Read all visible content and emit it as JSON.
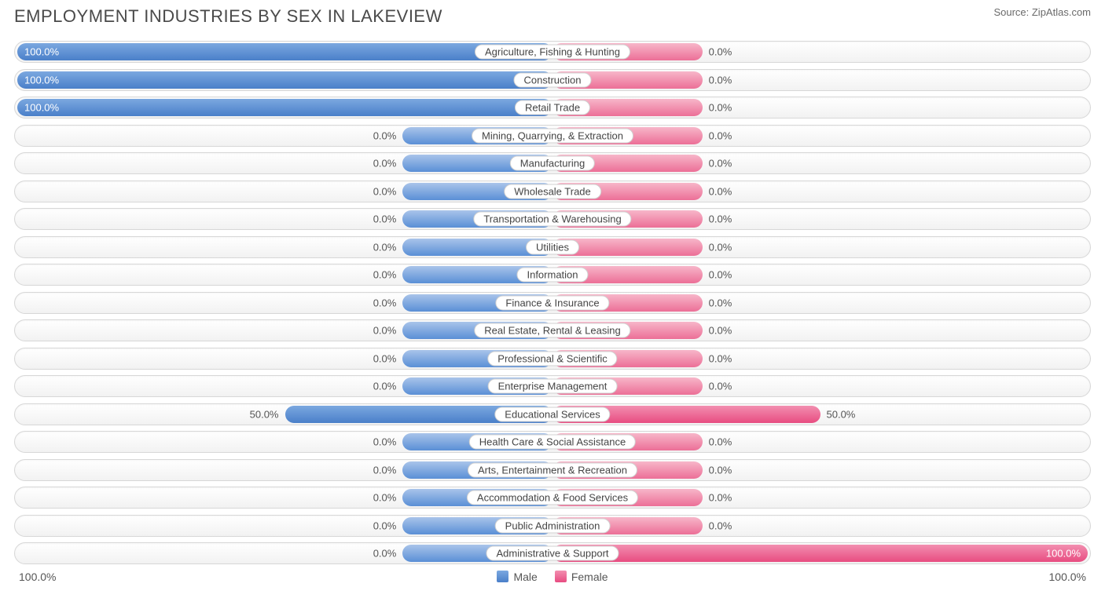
{
  "title": "EMPLOYMENT INDUSTRIES BY SEX IN LAKEVIEW",
  "source": "Source: ZipAtlas.com",
  "colors": {
    "male_light": "#a9c4ea",
    "male_dark": "#5a8fd6",
    "male_full_light": "#7ba8e0",
    "male_full_dark": "#4a7fc9",
    "female_light": "#f7b6c9",
    "female_dark": "#ec6f97",
    "female_full_light": "#f28fb0",
    "female_full_dark": "#e84c81",
    "track_border": "#d7d7d7",
    "text": "#555555"
  },
  "chart": {
    "type": "diverging-bar",
    "min_bar_pct": 28,
    "categories": [
      {
        "label": "Agriculture, Fishing & Hunting",
        "male": 100.0,
        "female": 0.0
      },
      {
        "label": "Construction",
        "male": 100.0,
        "female": 0.0
      },
      {
        "label": "Retail Trade",
        "male": 100.0,
        "female": 0.0
      },
      {
        "label": "Mining, Quarrying, & Extraction",
        "male": 0.0,
        "female": 0.0
      },
      {
        "label": "Manufacturing",
        "male": 0.0,
        "female": 0.0
      },
      {
        "label": "Wholesale Trade",
        "male": 0.0,
        "female": 0.0
      },
      {
        "label": "Transportation & Warehousing",
        "male": 0.0,
        "female": 0.0
      },
      {
        "label": "Utilities",
        "male": 0.0,
        "female": 0.0
      },
      {
        "label": "Information",
        "male": 0.0,
        "female": 0.0
      },
      {
        "label": "Finance & Insurance",
        "male": 0.0,
        "female": 0.0
      },
      {
        "label": "Real Estate, Rental & Leasing",
        "male": 0.0,
        "female": 0.0
      },
      {
        "label": "Professional & Scientific",
        "male": 0.0,
        "female": 0.0
      },
      {
        "label": "Enterprise Management",
        "male": 0.0,
        "female": 0.0
      },
      {
        "label": "Educational Services",
        "male": 50.0,
        "female": 50.0
      },
      {
        "label": "Health Care & Social Assistance",
        "male": 0.0,
        "female": 0.0
      },
      {
        "label": "Arts, Entertainment & Recreation",
        "male": 0.0,
        "female": 0.0
      },
      {
        "label": "Accommodation & Food Services",
        "male": 0.0,
        "female": 0.0
      },
      {
        "label": "Public Administration",
        "male": 0.0,
        "female": 0.0
      },
      {
        "label": "Administrative & Support",
        "male": 0.0,
        "female": 100.0
      }
    ]
  },
  "legend": {
    "male": "Male",
    "female": "Female"
  },
  "axis": {
    "left": "100.0%",
    "right": "100.0%"
  }
}
